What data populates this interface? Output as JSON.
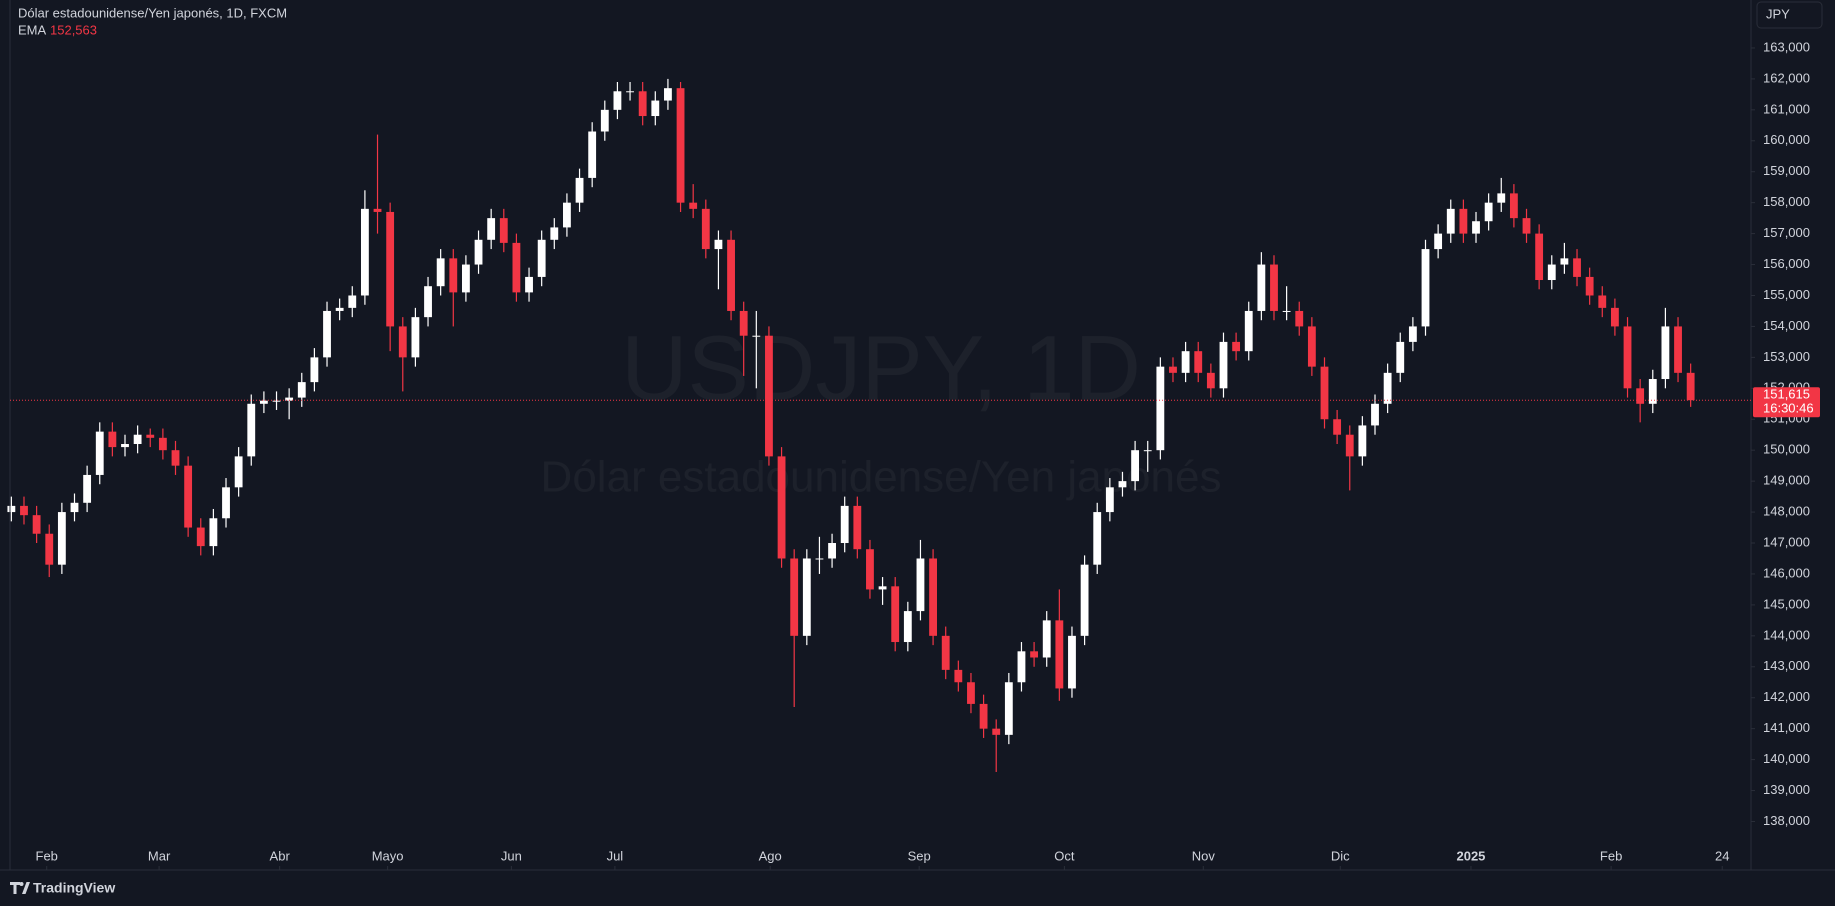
{
  "chart_data": {
    "type": "candlestick",
    "symbol_title": "Dólar estadounidense/Yen japonés, 1D, FXCM",
    "indicator": "EMA",
    "indicator_value": "152,563",
    "watermark": "USDJPY, 1D",
    "watermark_subtitle": "Dólar estadounidense/Yen japonés",
    "currency": "JPY",
    "countdown": "16:30:46",
    "brand": "TradingView",
    "up_color": "#ffffff",
    "down_color": "#f23645",
    "last_price": {
      "value": 151.615,
      "label": "151,615"
    },
    "xlim": [
      -0.9,
      137.7
    ],
    "ylim": [
      137.24,
      164.55
    ],
    "xticks": [
      {
        "value": 2.8,
        "label": "Feb"
      },
      {
        "value": 11.7,
        "label": "Mar"
      },
      {
        "value": 21.25,
        "label": "Abr"
      },
      {
        "value": 29.8,
        "label": "Mayo"
      },
      {
        "value": 39.6,
        "label": "Jun"
      },
      {
        "value": 47.8,
        "label": "Jul"
      },
      {
        "value": 60.1,
        "label": "Ago"
      },
      {
        "value": 71.9,
        "label": "Sep"
      },
      {
        "value": 83.4,
        "label": "Oct"
      },
      {
        "value": 94.4,
        "label": "Nov"
      },
      {
        "value": 105.25,
        "label": "Dic"
      },
      {
        "value": 115.6,
        "label": "2025"
      },
      {
        "value": 126.7,
        "label": "Feb"
      },
      {
        "value": 135.5,
        "label": "24"
      }
    ],
    "yticks": [
      {
        "value": 138,
        "label": "138,000"
      },
      {
        "value": 139,
        "label": "139,000"
      },
      {
        "value": 140,
        "label": "140,000"
      },
      {
        "value": 141,
        "label": "141,000"
      },
      {
        "value": 142,
        "label": "142,000"
      },
      {
        "value": 143,
        "label": "143,000"
      },
      {
        "value": 144,
        "label": "144,000"
      },
      {
        "value": 145,
        "label": "145,000"
      },
      {
        "value": 146,
        "label": "146,000"
      },
      {
        "value": 147,
        "label": "147,000"
      },
      {
        "value": 148,
        "label": "148,000"
      },
      {
        "value": 149,
        "label": "149,000"
      },
      {
        "value": 150,
        "label": "150,000"
      },
      {
        "value": 151,
        "label": "151,000"
      },
      {
        "value": 152,
        "label": "152,000"
      },
      {
        "value": 153,
        "label": "153,000"
      },
      {
        "value": 154,
        "label": "154,000"
      },
      {
        "value": 155,
        "label": "155,000"
      },
      {
        "value": 156,
        "label": "156,000"
      },
      {
        "value": 157,
        "label": "157,000"
      },
      {
        "value": 158,
        "label": "158,000"
      },
      {
        "value": 159,
        "label": "159,000"
      },
      {
        "value": 160,
        "label": "160,000"
      },
      {
        "value": 161,
        "label": "161,000"
      },
      {
        "value": 162,
        "label": "162,000"
      },
      {
        "value": 163,
        "label": "163,000"
      }
    ],
    "open": [
      148.0,
      148.2,
      147.9,
      147.3,
      146.3,
      148.0,
      148.3,
      149.2,
      150.6,
      150.1,
      150.2,
      150.5,
      150.4,
      150.0,
      149.5,
      147.5,
      146.9,
      147.8,
      148.8,
      149.8,
      151.5,
      151.6,
      151.6,
      151.7,
      152.2,
      153.0,
      154.5,
      154.6,
      155.0,
      157.8,
      157.7,
      154.0,
      153.0,
      154.3,
      155.3,
      156.2,
      155.1,
      156.0,
      156.8,
      157.5,
      156.7,
      155.1,
      155.6,
      156.8,
      157.2,
      158.0,
      158.8,
      160.3,
      161.0,
      161.6,
      161.6,
      160.8,
      161.3,
      161.7,
      158.0,
      157.8,
      156.5,
      156.8,
      154.5,
      153.7,
      153.7,
      149.8,
      146.5,
      144.0,
      146.5,
      146.5,
      147.0,
      148.2,
      146.8,
      145.5,
      145.6,
      143.8,
      144.8,
      146.5,
      144.0,
      142.9,
      142.5,
      141.8,
      141.0,
      140.8,
      142.5,
      143.5,
      143.3,
      144.5,
      142.3,
      144.0,
      146.3,
      148.0,
      148.8,
      149.0,
      150.0,
      150.0,
      152.7,
      152.5,
      153.2,
      152.5,
      152.0,
      153.5,
      153.2,
      154.5,
      156.0,
      154.5,
      154.5,
      154.0,
      152.7,
      151.0,
      150.5,
      149.8,
      150.8,
      151.5,
      152.5,
      153.5,
      154.0,
      156.5,
      157.0,
      157.8,
      157.0,
      157.4,
      158.0,
      158.3,
      157.5,
      157.0,
      155.5,
      156.0,
      156.2,
      155.6,
      155.0,
      154.6,
      154.0,
      152.0,
      151.5,
      152.3,
      154.0,
      152.5
    ],
    "high": [
      148.5,
      148.5,
      148.2,
      147.6,
      148.3,
      148.6,
      149.5,
      150.9,
      150.9,
      150.5,
      150.8,
      150.7,
      150.7,
      150.3,
      149.8,
      147.8,
      148.1,
      149.1,
      150.1,
      151.8,
      151.9,
      151.9,
      152.0,
      152.5,
      153.3,
      154.8,
      154.9,
      155.3,
      158.4,
      160.2,
      158.0,
      154.3,
      154.6,
      155.6,
      156.5,
      156.5,
      156.3,
      157.1,
      157.8,
      157.8,
      157.0,
      155.9,
      157.1,
      157.5,
      158.3,
      159.1,
      160.6,
      161.3,
      161.9,
      161.9,
      161.9,
      161.6,
      162.0,
      161.9,
      158.6,
      158.1,
      157.1,
      157.1,
      154.8,
      154.5,
      154.0,
      150.1,
      146.8,
      146.8,
      147.2,
      147.3,
      148.5,
      148.5,
      147.1,
      145.9,
      145.9,
      145.1,
      147.1,
      146.8,
      144.3,
      143.2,
      142.8,
      142.1,
      141.3,
      142.8,
      143.8,
      143.8,
      144.8,
      145.5,
      144.3,
      146.6,
      148.3,
      149.1,
      149.3,
      150.3,
      150.3,
      153.0,
      153.0,
      153.5,
      153.5,
      152.8,
      153.8,
      153.8,
      154.8,
      156.4,
      156.3,
      155.3,
      154.8,
      154.3,
      153.0,
      151.3,
      150.8,
      151.1,
      151.8,
      152.8,
      153.8,
      154.3,
      156.8,
      157.3,
      158.1,
      158.1,
      157.7,
      158.3,
      158.8,
      158.6,
      157.8,
      157.3,
      156.3,
      156.7,
      156.5,
      155.9,
      155.3,
      154.9,
      154.3,
      152.3,
      152.6,
      154.6,
      154.3,
      152.8
    ],
    "low": [
      147.7,
      147.6,
      147.0,
      145.9,
      146.0,
      147.7,
      148.0,
      148.9,
      149.8,
      149.8,
      149.9,
      150.1,
      149.7,
      149.2,
      147.2,
      146.6,
      146.6,
      147.5,
      148.5,
      149.5,
      151.2,
      151.3,
      151.0,
      151.4,
      151.9,
      152.7,
      154.2,
      154.3,
      154.7,
      157.0,
      153.2,
      151.9,
      152.7,
      154.0,
      155.0,
      154.0,
      154.8,
      155.7,
      156.5,
      156.4,
      154.8,
      154.8,
      155.3,
      156.5,
      156.9,
      157.7,
      158.5,
      160.0,
      160.7,
      161.3,
      160.5,
      160.5,
      161.0,
      157.7,
      157.5,
      156.2,
      155.2,
      154.2,
      152.4,
      152.0,
      149.5,
      146.2,
      141.7,
      143.7,
      146.0,
      146.2,
      146.7,
      146.5,
      145.2,
      145.0,
      143.5,
      143.5,
      144.5,
      143.7,
      142.6,
      142.2,
      141.5,
      140.7,
      139.6,
      140.5,
      142.2,
      143.0,
      143.0,
      141.9,
      142.0,
      143.7,
      146.0,
      147.7,
      148.5,
      148.7,
      149.3,
      149.7,
      152.2,
      152.2,
      152.2,
      151.7,
      151.7,
      152.9,
      152.9,
      154.2,
      154.2,
      154.2,
      153.7,
      152.4,
      150.7,
      150.2,
      148.7,
      149.5,
      150.5,
      151.2,
      152.2,
      153.2,
      153.7,
      156.2,
      156.7,
      156.7,
      156.7,
      157.1,
      157.7,
      157.2,
      156.7,
      155.2,
      155.2,
      155.7,
      155.3,
      154.7,
      154.3,
      153.7,
      151.7,
      150.9,
      151.2,
      152.0,
      152.2,
      151.4
    ],
    "close": [
      148.2,
      147.9,
      147.3,
      146.3,
      148.0,
      148.3,
      149.2,
      150.6,
      150.1,
      150.2,
      150.5,
      150.4,
      150.0,
      149.5,
      147.5,
      146.9,
      147.8,
      148.8,
      149.8,
      151.5,
      151.6,
      151.6,
      151.7,
      152.2,
      153.0,
      154.5,
      154.6,
      155.0,
      157.8,
      157.7,
      154.0,
      153.0,
      154.3,
      155.3,
      156.2,
      155.1,
      156.0,
      156.8,
      157.5,
      156.7,
      155.1,
      155.6,
      156.8,
      157.2,
      158.0,
      158.8,
      160.3,
      161.0,
      161.6,
      161.6,
      160.8,
      161.3,
      161.7,
      158.0,
      157.8,
      156.5,
      156.8,
      154.5,
      153.7,
      153.7,
      149.8,
      146.5,
      144.0,
      146.5,
      146.5,
      147.0,
      148.2,
      146.8,
      145.5,
      145.6,
      143.8,
      144.8,
      146.5,
      144.0,
      142.9,
      142.5,
      141.8,
      141.0,
      140.8,
      142.5,
      143.5,
      143.3,
      144.5,
      142.3,
      144.0,
      146.3,
      148.0,
      148.8,
      149.0,
      150.0,
      150.0,
      152.7,
      152.5,
      153.2,
      152.5,
      152.0,
      153.5,
      153.2,
      154.5,
      156.0,
      154.5,
      154.5,
      154.0,
      152.7,
      151.0,
      150.5,
      149.8,
      150.8,
      151.5,
      152.5,
      153.5,
      154.0,
      156.5,
      157.0,
      157.8,
      157.0,
      157.4,
      158.0,
      158.3,
      157.5,
      157.0,
      155.5,
      156.0,
      156.2,
      155.6,
      155.0,
      154.6,
      154.0,
      152.0,
      151.5,
      152.3,
      154.0,
      152.5,
      151.615
    ]
  }
}
